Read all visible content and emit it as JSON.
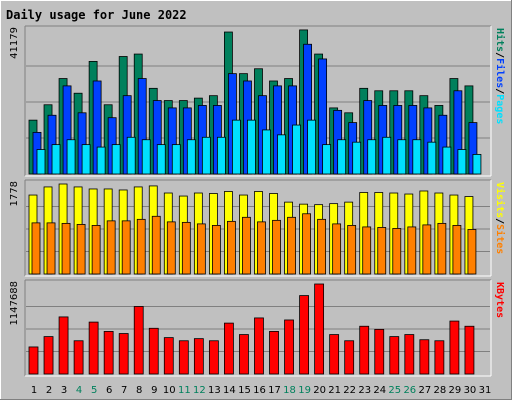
{
  "chart_data": {
    "type": "bar",
    "title": "Daily usage for June 2022",
    "days": [
      "1",
      "2",
      "3",
      "4",
      "5",
      "6",
      "7",
      "8",
      "9",
      "10",
      "11",
      "12",
      "13",
      "14",
      "15",
      "16",
      "17",
      "18",
      "19",
      "20",
      "21",
      "22",
      "23",
      "24",
      "25",
      "26",
      "27",
      "28",
      "29",
      "30",
      "31"
    ],
    "weekend_days": [
      4,
      5,
      11,
      12,
      18,
      19,
      25,
      26
    ],
    "colors": {
      "background": "#C0C0C0",
      "frame": "#808080",
      "title": "#0000CC",
      "hits": "#00805C",
      "files": "#0040FF",
      "pages": "#00E0FF",
      "visits": "#FFFF00",
      "sites": "#FF8000",
      "kbytes": "#FF0000",
      "weekday_label": "#000000",
      "weekend_label": "#00805C"
    },
    "panels": [
      {
        "id": "hits-files-pages",
        "max_label": "41179",
        "ymax": 41179,
        "legend": [
          {
            "text": "Hits",
            "color": "#00805C"
          },
          {
            "text": "/",
            "color": "#000000"
          },
          {
            "text": "Files",
            "color": "#0040FF"
          },
          {
            "text": "/",
            "color": "#000000"
          },
          {
            "text": "Pages",
            "color": "#00E0FF"
          }
        ],
        "series": [
          {
            "name": "Hits",
            "color": "#00805C",
            "values": [
              15400,
              19800,
              27300,
              23100,
              32200,
              19800,
              33600,
              34300,
              24500,
              21000,
              21000,
              21700,
              22400,
              40600,
              28700,
              30100,
              26600,
              27300,
              41200,
              34300,
              18900,
              17500,
              24500,
              23800,
              23800,
              23800,
              22400,
              19600,
              27300,
              25200,
              null
            ]
          },
          {
            "name": "Files",
            "color": "#0040FF",
            "values": [
              11900,
              16800,
              25200,
              17500,
              26600,
              16100,
              22400,
              27300,
              21000,
              18900,
              18900,
              19600,
              19600,
              28700,
              26600,
              22400,
              25200,
              25200,
              37100,
              32900,
              18200,
              14700,
              21000,
              19600,
              19600,
              19600,
              18900,
              16800,
              23800,
              14700,
              null
            ]
          },
          {
            "name": "Pages",
            "color": "#00E0FF",
            "values": [
              7000,
              8400,
              9800,
              8400,
              7700,
              8400,
              10500,
              9800,
              8400,
              8400,
              9800,
              10500,
              10500,
              15400,
              15400,
              12600,
              11200,
              14000,
              15400,
              8400,
              9800,
              9100,
              9800,
              10500,
              9800,
              9800,
              9100,
              7700,
              7000,
              5600,
              null
            ]
          }
        ]
      },
      {
        "id": "visits-sites",
        "max_label": "1778",
        "ymax": 1778,
        "legend": [
          {
            "text": "Visits",
            "color": "#FFFF00"
          },
          {
            "text": "/",
            "color": "#000000"
          },
          {
            "text": "Sites",
            "color": "#FF8000"
          }
        ],
        "series": [
          {
            "name": "Visits",
            "color": "#FFFF00",
            "values": [
              1560,
              1720,
              1778,
              1720,
              1680,
              1680,
              1660,
              1720,
              1740,
              1600,
              1540,
              1600,
              1590,
              1630,
              1560,
              1630,
              1590,
              1420,
              1380,
              1370,
              1390,
              1420,
              1610,
              1610,
              1600,
              1580,
              1640,
              1600,
              1560,
              1530,
              null
            ]
          },
          {
            "name": "Sites",
            "color": "#FF8000",
            "values": [
              1010,
              1010,
              1000,
              980,
              960,
              1050,
              1050,
              1080,
              1140,
              1030,
              1020,
              990,
              960,
              1040,
              1120,
              1030,
              1060,
              1120,
              1190,
              1080,
              990,
              960,
              930,
              920,
              900,
              930,
              970,
              1000,
              960,
              880,
              null
            ]
          }
        ]
      },
      {
        "id": "kbytes",
        "max_label": "1147688",
        "ymax": 1147688,
        "legend": [
          {
            "text": "KBytes",
            "color": "#FF0000"
          }
        ],
        "series": [
          {
            "name": "KBytes",
            "color": "#FF0000",
            "values": [
              345000,
              477000,
              728000,
              424000,
              662000,
              543000,
              516000,
              861000,
              583000,
              464000,
              424000,
              451000,
              424000,
              649000,
              503000,
              715000,
              543000,
              689000,
              1000000,
              1147688,
              503000,
              424000,
              609000,
              569000,
              477000,
              503000,
              437000,
              424000,
              675000,
              609000,
              null
            ]
          }
        ]
      }
    ]
  }
}
